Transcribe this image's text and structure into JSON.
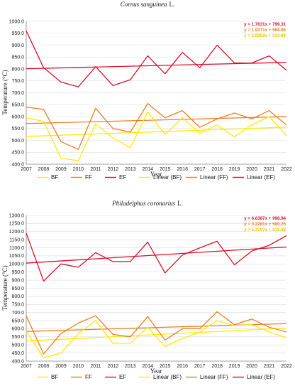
{
  "colors": {
    "BF": "#ffea00",
    "FF": "#ee7d1f",
    "EF": "#d80f2e"
  },
  "chart_data": [
    {
      "type": "line",
      "title": "Cornus sanguinea",
      "title_suffix": "L.",
      "xlabel": "Year",
      "ylabel": "Temperature (°C)",
      "ylim": [
        400,
        1000
      ],
      "ytick_step": 50,
      "ytick_format": "0.0",
      "grid": "horizontal",
      "legend_placement": "bottom",
      "x": [
        2007,
        2008,
        2009,
        2010,
        2011,
        2012,
        2013,
        2014,
        2015,
        2016,
        2017,
        2018,
        2019,
        2020,
        2021,
        2022
      ],
      "series": [
        {
          "name": "BF",
          "values": [
            595,
            580,
            425,
            415,
            570,
            510,
            470,
            620,
            525,
            595,
            530,
            565,
            515,
            565,
            600,
            520
          ]
        },
        {
          "name": "FF",
          "values": [
            640,
            630,
            495,
            462,
            635,
            550,
            535,
            655,
            595,
            625,
            555,
            590,
            615,
            590,
            625,
            565
          ]
        },
        {
          "name": "EF",
          "values": [
            960,
            805,
            745,
            725,
            810,
            730,
            755,
            855,
            780,
            870,
            805,
            900,
            825,
            825,
            855,
            795
          ]
        }
      ],
      "trendlines": [
        {
          "name": "Linear (BF)",
          "series": "BF",
          "slope": 2.6052,
          "intercept": 513.94,
          "equation": "y = 2.6052x + 513.94"
        },
        {
          "name": "Linear (FF)",
          "series": "FF",
          "slope": 1.9371,
          "intercept": 568.86,
          "equation": "y = 1.9371x + 568.86"
        },
        {
          "name": "Linear (EF)",
          "series": "EF",
          "slope": 1.7631,
          "intercept": 799.31,
          "equation": "y = 1.7631x + 799.31"
        }
      ],
      "legend": [
        "BF",
        "FF",
        "EF",
        "Linear (BF)",
        "Linear (FF)",
        "Linear (EF)"
      ]
    },
    {
      "type": "line",
      "title": "Philadelphus coronarius",
      "title_suffix": "L.",
      "xlabel": "Year",
      "ylabel": "Temperature (°C)",
      "ylim": [
        400,
        1300
      ],
      "ytick_step": 50,
      "ytick_format": "0.0",
      "grid": "horizontal",
      "legend_placement": "bottom",
      "x": [
        2007,
        2008,
        2009,
        2010,
        2011,
        2012,
        2013,
        2014,
        2015,
        2016,
        2017,
        2018,
        2019,
        2020,
        2021,
        2022
      ],
      "series": [
        {
          "name": "BF",
          "values": [
            585,
            420,
            450,
            570,
            650,
            510,
            510,
            610,
            490,
            540,
            580,
            650,
            620,
            625,
            580,
            545
          ]
        },
        {
          "name": "FF",
          "values": [
            680,
            445,
            570,
            635,
            680,
            565,
            550,
            675,
            530,
            600,
            600,
            705,
            625,
            660,
            610,
            580
          ]
        },
        {
          "name": "EF",
          "values": [
            1190,
            895,
            1000,
            980,
            1070,
            1015,
            1015,
            1135,
            945,
            1055,
            1100,
            1140,
            995,
            1080,
            1115,
            1175
          ]
        }
      ],
      "trendlines": [
        {
          "name": "Linear (BF)",
          "series": "BF",
          "slope": 5.3297,
          "intercept": 518.88,
          "equation": "y = 5.3297x + 518.88"
        },
        {
          "name": "Linear (FF)",
          "series": "FF",
          "slope": 3.2281,
          "intercept": 580.25,
          "equation": "y = 3.2281x + 580.25"
        },
        {
          "name": "Linear (EF)",
          "series": "EF",
          "slope": 6.6387,
          "intercept": 998.94,
          "equation": "y = 6.6387x + 998.94"
        }
      ],
      "legend": [
        "BF",
        "FF",
        "EF",
        "Linear (BF)",
        "Linear (FF)",
        "Linear (EF)"
      ]
    }
  ]
}
